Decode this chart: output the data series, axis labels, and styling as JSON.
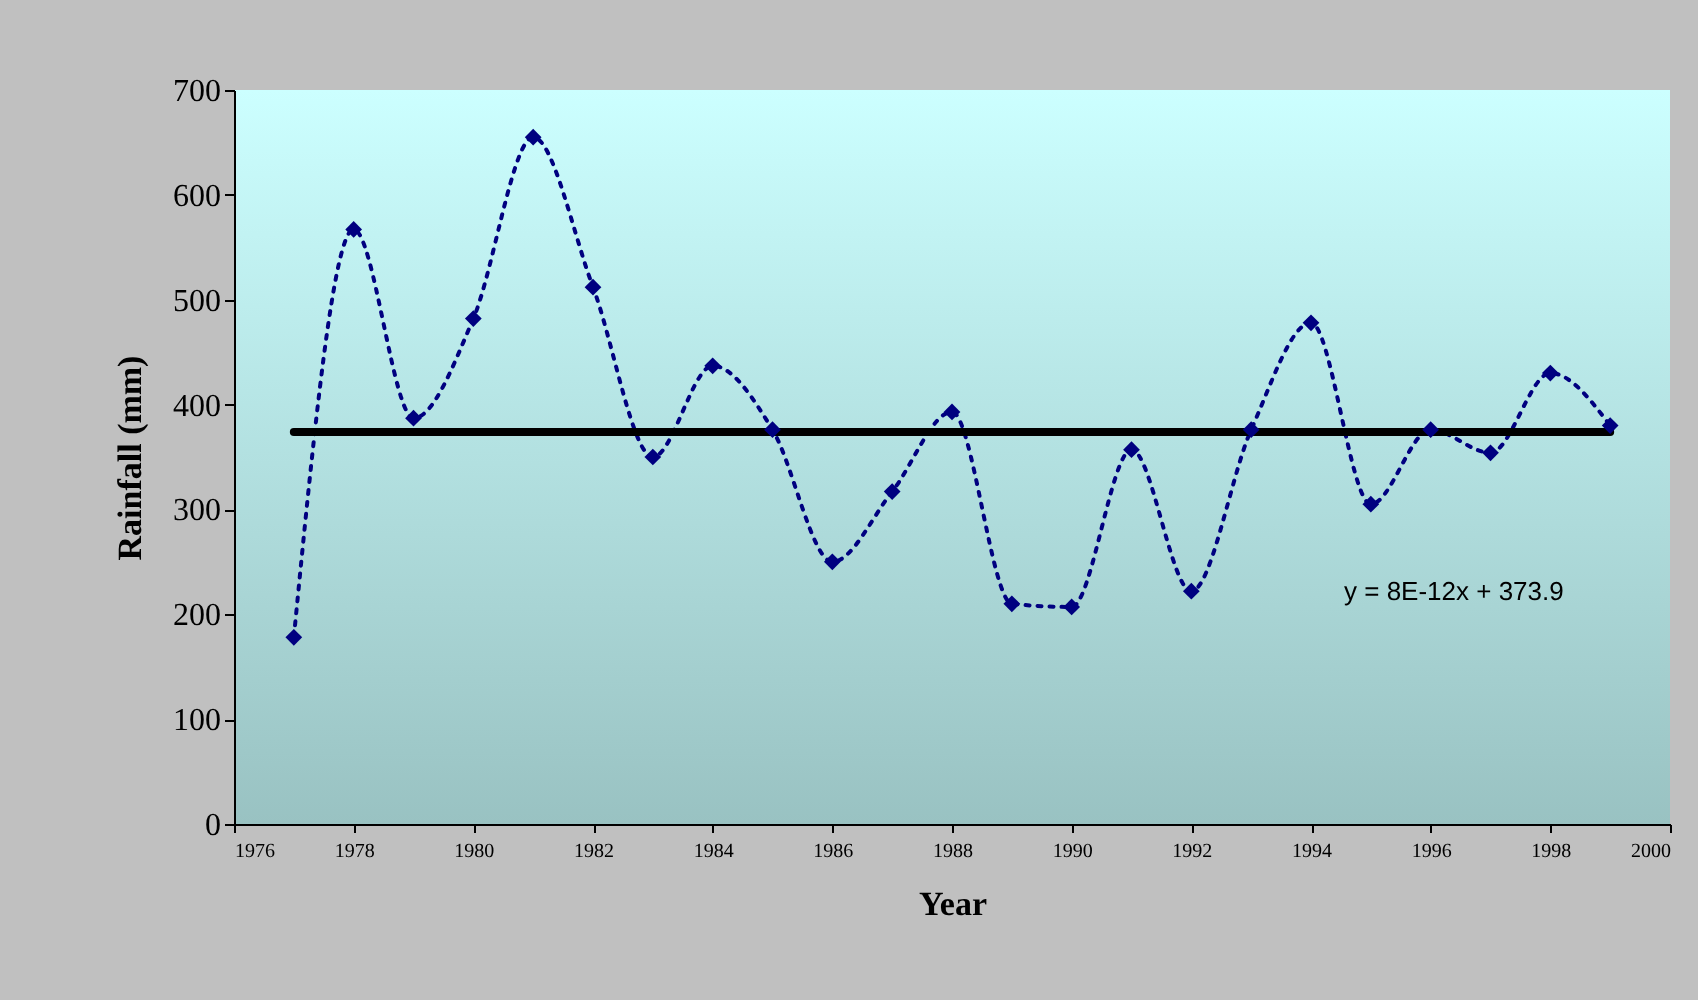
{
  "chart_data": {
    "type": "line",
    "xlabel": "Year",
    "ylabel": "Rainfall (mm)",
    "x": [
      1977,
      1978,
      1979,
      1980,
      1981,
      1982,
      1983,
      1984,
      1985,
      1986,
      1987,
      1988,
      1989,
      1990,
      1991,
      1992,
      1993,
      1994,
      1995,
      1996,
      1997,
      1998,
      1999
    ],
    "series": [
      {
        "color": "#000080",
        "values": [
          178,
          567,
          387,
          482,
          655,
          512,
          350,
          437,
          376,
          250,
          317,
          393,
          210,
          207,
          357,
          222,
          376,
          478,
          305,
          376,
          354,
          430,
          380
        ]
      },
      {
        "type": "line",
        "color": "#000000",
        "x": [
          1977,
          1999
        ],
        "values": [
          373.9,
          373.9
        ],
        "marker": "none",
        "line_style": "solid"
      }
    ],
    "xlim": [
      1976,
      2000
    ],
    "xticks": [
      1976,
      1978,
      1980,
      1982,
      1984,
      1986,
      1988,
      1990,
      1992,
      1994,
      1996,
      1998,
      2000
    ],
    "ylim": [
      0,
      700
    ],
    "yticks": [
      0,
      100,
      200,
      300,
      400,
      500,
      600,
      700
    ],
    "annotations": [
      "y = 8E-12x + 373.9"
    ],
    "grid": false,
    "marker": "diamond",
    "line_style": "dotted"
  }
}
